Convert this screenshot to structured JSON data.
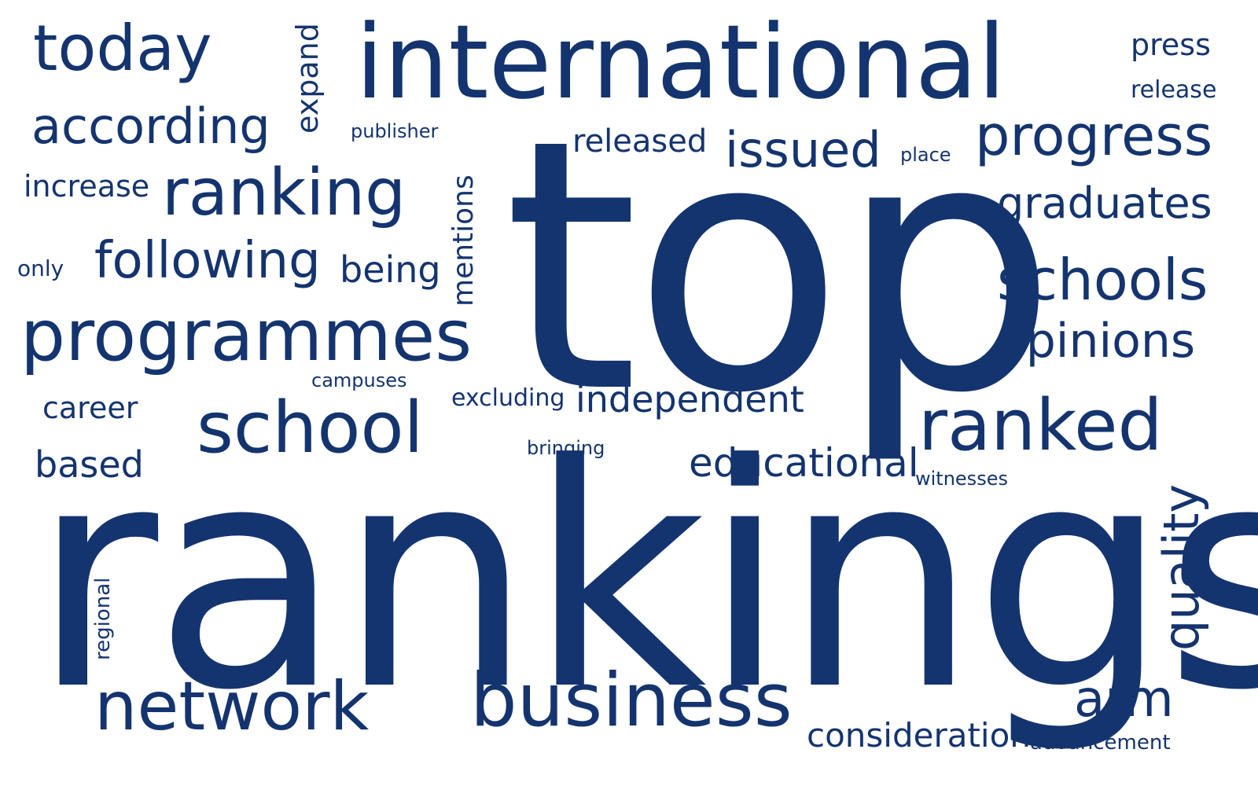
{
  "accent_color": "#14346f",
  "background_color": "#ffffff",
  "words": {
    "today": "today",
    "expand": "expand",
    "international": "international",
    "press": "press",
    "release": "release",
    "according": "according",
    "publisher": "publisher",
    "released": "released",
    "issued": "issued",
    "place": "place",
    "progress": "progress",
    "increase": "increase",
    "ranking": "ranking",
    "mentions": "mentions",
    "top": "top",
    "graduates": "graduates",
    "only": "only",
    "following": "following",
    "being": "being",
    "schools": "schools",
    "programmes": "programmes",
    "opinions": "opinions",
    "campuses": "campuses",
    "career": "career",
    "excluding": "excluding",
    "independent": "independent",
    "school": "school",
    "ranked": "ranked",
    "bringing": "bringing",
    "based": "based",
    "educational": "educational",
    "witnesses": "witnesses",
    "quality": "quality",
    "rankings": "rankings",
    "regional": "regional",
    "network": "network",
    "business": "business",
    "arm": "arm",
    "consideration": "consideration",
    "advancement": "advancement"
  }
}
